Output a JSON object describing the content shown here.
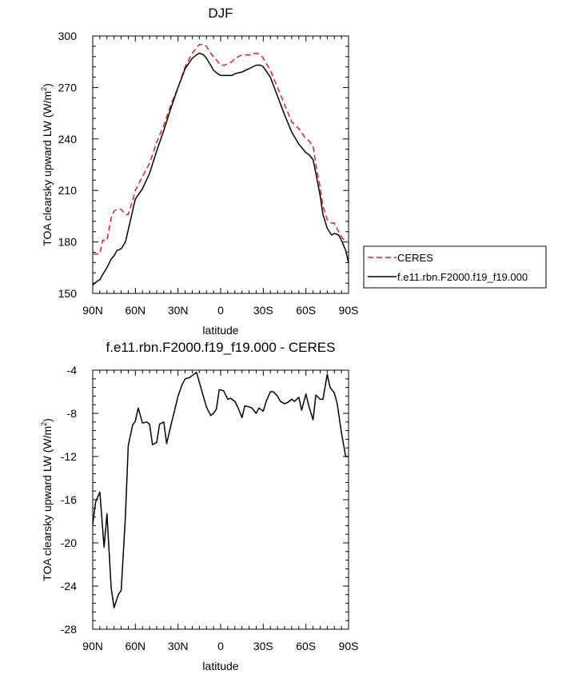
{
  "chart_data": [
    {
      "type": "line",
      "title": "DJF",
      "xlabel": "latitude",
      "ylabel": "TOA clearsky upward LW (W/m",
      "ylabel_sup": "2",
      "ylabel_end": ")",
      "xlim": [
        90,
        -90
      ],
      "ylim": [
        150,
        300
      ],
      "xticks": [
        90,
        60,
        30,
        0,
        -30,
        -60,
        -90
      ],
      "xtick_labels": [
        "90N",
        "60N",
        "30N",
        "0",
        "30S",
        "60S",
        "90S"
      ],
      "yticks": [
        150,
        180,
        210,
        240,
        270,
        300
      ],
      "ytick_labels": [
        "150",
        "180",
        "210",
        "240",
        "270",
        "300"
      ],
      "legend": [
        "CERES",
        "f.e11.rbn.F2000.f19_f19.000"
      ],
      "series": [
        {
          "name": "CERES",
          "color": "#e41a1c",
          "dash": true,
          "x": [
            90,
            87,
            85,
            83,
            80,
            77,
            75,
            73,
            70,
            67,
            65,
            62,
            60,
            55,
            50,
            45,
            40,
            35,
            30,
            25,
            20,
            17,
            15,
            12,
            10,
            7,
            5,
            2,
            0,
            -3,
            -5,
            -8,
            -10,
            -15,
            -20,
            -25,
            -28,
            -30,
            -35,
            -40,
            -45,
            -50,
            -55,
            -60,
            -62,
            -65,
            -67,
            -70,
            -72,
            -75,
            -78,
            -80,
            -83,
            -85,
            -88,
            -90
          ],
          "y": [
            173,
            173,
            173,
            181,
            181,
            194,
            198,
            199,
            199,
            196,
            196,
            204,
            210,
            218,
            226,
            238,
            248,
            260,
            270,
            282,
            290,
            293,
            295,
            295,
            294,
            290,
            288,
            285,
            283,
            283,
            284,
            285,
            287,
            289,
            289,
            290,
            289,
            287,
            280,
            270,
            260,
            250,
            246,
            240,
            239,
            236,
            225,
            212,
            201,
            193,
            191,
            191,
            186,
            183,
            180,
            180
          ]
        },
        {
          "name": "f.e11.rbn.F2000.f19_f19.000",
          "color": "#000000",
          "dash": false,
          "x": [
            90,
            87,
            85,
            83,
            80,
            77,
            75,
            73,
            70,
            67,
            65,
            62,
            60,
            55,
            50,
            45,
            40,
            35,
            30,
            25,
            20,
            17,
            15,
            12,
            10,
            7,
            5,
            2,
            0,
            -3,
            -5,
            -8,
            -10,
            -15,
            -20,
            -25,
            -28,
            -30,
            -35,
            -40,
            -45,
            -50,
            -55,
            -60,
            -62,
            -65,
            -67,
            -70,
            -72,
            -75,
            -78,
            -80,
            -83,
            -85,
            -88,
            -90
          ],
          "y": [
            155,
            157,
            158,
            161,
            165,
            170,
            172,
            175,
            176,
            180,
            187,
            198,
            205,
            211,
            220,
            233,
            245,
            258,
            270,
            281,
            287,
            289,
            290,
            289,
            287,
            283,
            280,
            278,
            277,
            277,
            277,
            277,
            278,
            279,
            281,
            283,
            283,
            282,
            276,
            265,
            254,
            244,
            237,
            232,
            231,
            228,
            220,
            207,
            196,
            188,
            184,
            185,
            184,
            181,
            175,
            168
          ]
        }
      ]
    },
    {
      "type": "line",
      "title": "f.e11.rbn.F2000.f19_f19.000 - CERES",
      "xlabel": "latitude",
      "ylabel": "TOA clearsky upward LW (W/m",
      "ylabel_sup": "2",
      "ylabel_end": ")",
      "xlim": [
        90,
        -90
      ],
      "ylim": [
        -28,
        -4
      ],
      "xticks": [
        90,
        60,
        30,
        0,
        -30,
        -60,
        -90
      ],
      "xtick_labels": [
        "90N",
        "60N",
        "30N",
        "0",
        "30S",
        "60S",
        "90S"
      ],
      "yticks": [
        -28,
        -24,
        -20,
        -16,
        -12,
        -8,
        -4
      ],
      "ytick_labels": [
        "-28",
        "-24",
        "-20",
        "-16",
        "-12",
        "-8",
        "-4"
      ],
      "series": [
        {
          "name": "f.e11.rbn.F2000.f19_f19.000 - CERES",
          "color": "#000000",
          "dash": false,
          "x": [
            90,
            88,
            85,
            82,
            80,
            77,
            75,
            72,
            70,
            67,
            65,
            62,
            60,
            58,
            55,
            52,
            50,
            48,
            45,
            43,
            40,
            38,
            35,
            32,
            30,
            27,
            25,
            22,
            20,
            18,
            17,
            15,
            12,
            10,
            7,
            5,
            3,
            1,
            -2,
            -5,
            -7,
            -10,
            -12,
            -15,
            -17,
            -20,
            -22,
            -25,
            -27,
            -30,
            -32,
            -35,
            -37,
            -40,
            -42,
            -45,
            -47,
            -50,
            -52,
            -55,
            -57,
            -60,
            -62,
            -65,
            -67,
            -70,
            -72,
            -75,
            -77,
            -80,
            -82,
            -85,
            -88,
            -90
          ],
          "y": [
            -18.3,
            -16.2,
            -15.3,
            -20.4,
            -17.3,
            -24.2,
            -26.0,
            -24.8,
            -24.4,
            -17.5,
            -11.0,
            -9.1,
            -8.7,
            -7.5,
            -8.9,
            -8.8,
            -9.0,
            -10.9,
            -10.7,
            -9.0,
            -8.8,
            -10.8,
            -9.1,
            -7.5,
            -6.4,
            -5.3,
            -4.8,
            -4.7,
            -4.5,
            -4.3,
            -4.2,
            -5.1,
            -6.5,
            -7.4,
            -8.2,
            -8.0,
            -7.6,
            -5.8,
            -5.9,
            -6.7,
            -6.6,
            -6.9,
            -7.4,
            -8.4,
            -7.3,
            -7.4,
            -7.5,
            -8.0,
            -7.5,
            -7.8,
            -6.9,
            -6.0,
            -6.0,
            -6.4,
            -6.9,
            -7.1,
            -7.0,
            -6.7,
            -6.9,
            -6.5,
            -7.7,
            -6.2,
            -7.3,
            -8.6,
            -6.3,
            -6.7,
            -6.7,
            -4.4,
            -5.6,
            -6.1,
            -7.1,
            -9.8,
            -12.0,
            -12.0
          ]
        }
      ]
    }
  ]
}
